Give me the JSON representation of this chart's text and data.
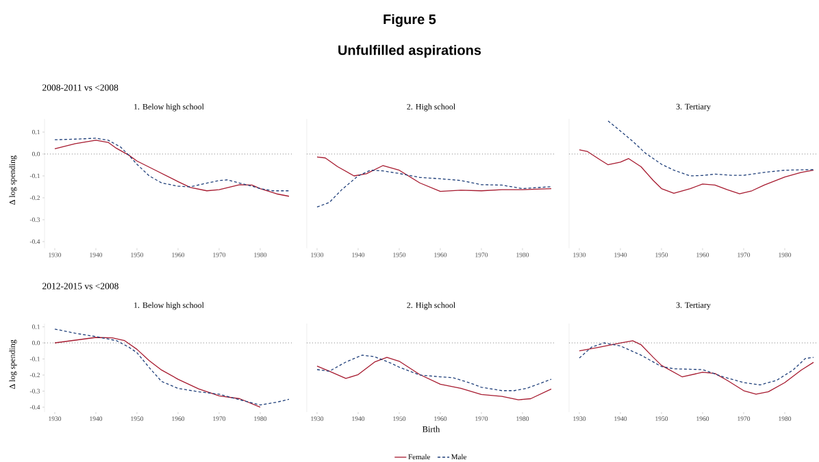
{
  "chart_data": [
    {
      "type": "line",
      "title": "1. Below high school",
      "subtitle": "2008-2011 vs <2008",
      "ylabel": "Δ log spending",
      "annotations": [
        "Figure 5",
        "Unfulfilled aspirations"
      ],
      "xlim": [
        1927.5,
        1988
      ],
      "xticks": [
        1930,
        1940,
        1950,
        1960,
        1970,
        1980
      ],
      "ylim": [
        -0.43,
        0.16
      ],
      "yticks": [
        -0.4,
        -0.3,
        -0.2,
        -0.1,
        {
          "value": 0,
          "label": "0.0"
        },
        0.1
      ],
      "ref_lines": [
        {
          "axis": "y",
          "value": 0,
          "line_style": "dotted",
          "color": "#333333"
        }
      ],
      "series": [
        {
          "color": "#a6192e",
          "line_style": "solid",
          "x": [
            1930,
            1935,
            1940,
            1943,
            1945,
            1948,
            1950,
            1955,
            1960,
            1963,
            1967,
            1970,
            1975,
            1978,
            1980,
            1984,
            1987
          ],
          "values": [
            0.024,
            0.047,
            0.063,
            0.053,
            0.026,
            -0.005,
            -0.032,
            -0.079,
            -0.126,
            -0.153,
            -0.168,
            -0.163,
            -0.14,
            -0.142,
            -0.158,
            -0.182,
            -0.193
          ]
        },
        {
          "color": "#1f3f7a",
          "line_style": "dashed",
          "x": [
            1930,
            1935,
            1940,
            1943,
            1946,
            1948,
            1950,
            1953,
            1956,
            1960,
            1963,
            1966,
            1970,
            1972,
            1975,
            1978,
            1980,
            1983,
            1987
          ],
          "values": [
            0.065,
            0.068,
            0.072,
            0.063,
            0.032,
            -0.005,
            -0.047,
            -0.1,
            -0.132,
            -0.147,
            -0.15,
            -0.137,
            -0.121,
            -0.118,
            -0.133,
            -0.147,
            -0.158,
            -0.168,
            -0.168
          ]
        }
      ]
    },
    {
      "type": "line",
      "title": "2. High school",
      "tick_labels": "x",
      "xlim": [
        1927.5,
        1988
      ],
      "xticks": [
        1930,
        1940,
        1950,
        1960,
        1970,
        1980
      ],
      "ylim": [
        -0.43,
        0.16
      ],
      "ref_lines": [
        {
          "axis": "y",
          "value": 0,
          "line_style": "dotted",
          "color": "#333333"
        }
      ],
      "series": [
        {
          "color": "#a6192e",
          "line_style": "solid",
          "x": [
            1930,
            1932,
            1935,
            1939,
            1942,
            1946,
            1950,
            1955,
            1960,
            1965,
            1970,
            1975,
            1980,
            1987
          ],
          "values": [
            -0.014,
            -0.018,
            -0.058,
            -0.1,
            -0.09,
            -0.053,
            -0.074,
            -0.132,
            -0.171,
            -0.165,
            -0.168,
            -0.163,
            -0.163,
            -0.158
          ]
        },
        {
          "color": "#1f3f7a",
          "line_style": "dashed",
          "x": [
            1930,
            1933,
            1936,
            1940,
            1943,
            1946,
            1950,
            1955,
            1960,
            1965,
            1970,
            1975,
            1980,
            1987
          ],
          "values": [
            -0.242,
            -0.221,
            -0.163,
            -0.1,
            -0.074,
            -0.077,
            -0.089,
            -0.107,
            -0.113,
            -0.121,
            -0.14,
            -0.142,
            -0.158,
            -0.149
          ]
        }
      ]
    },
    {
      "type": "line",
      "title": "3. Tertiary",
      "tick_labels": "x",
      "xlim": [
        1927.5,
        1988
      ],
      "xticks": [
        1930,
        1940,
        1950,
        1960,
        1970,
        1980
      ],
      "ylim": [
        -0.43,
        0.16
      ],
      "ref_lines": [
        {
          "axis": "y",
          "value": 0,
          "line_style": "dotted",
          "color": "#333333"
        }
      ],
      "series": [
        {
          "color": "#a6192e",
          "line_style": "solid",
          "x": [
            1930,
            1932,
            1935,
            1937,
            1940,
            1942,
            1945,
            1948,
            1950,
            1953,
            1957,
            1960,
            1963,
            1966,
            1969,
            1972,
            1975,
            1980,
            1984,
            1987
          ],
          "values": [
            0.019,
            0.011,
            -0.026,
            -0.049,
            -0.037,
            -0.021,
            -0.058,
            -0.121,
            -0.158,
            -0.179,
            -0.158,
            -0.137,
            -0.142,
            -0.163,
            -0.182,
            -0.168,
            -0.142,
            -0.105,
            -0.084,
            -0.074
          ]
        },
        {
          "color": "#1f3f7a",
          "line_style": "dashed",
          "x": [
            1937,
            1940,
            1943,
            1946,
            1950,
            1953,
            1957,
            1960,
            1963,
            1967,
            1970,
            1975,
            1980,
            1987
          ],
          "values": [
            0.151,
            0.105,
            0.058,
            0.005,
            -0.047,
            -0.074,
            -0.1,
            -0.098,
            -0.092,
            -0.097,
            -0.097,
            -0.084,
            -0.074,
            -0.071
          ]
        }
      ]
    },
    {
      "type": "line",
      "title": "1. Below high school",
      "subtitle": "2012-2015 vs <2008",
      "ylabel": "Δ log spending",
      "xlim": [
        1927.5,
        1988
      ],
      "xticks": [
        1930,
        1940,
        1950,
        1960,
        1970,
        1980
      ],
      "ylim": [
        -0.43,
        0.12
      ],
      "yticks": [
        -0.4,
        -0.3,
        -0.2,
        -0.1,
        {
          "value": 0,
          "label": "0.0"
        },
        0.1
      ],
      "ref_lines": [
        {
          "axis": "y",
          "value": 0,
          "line_style": "dotted",
          "color": "#333333"
        }
      ],
      "series": [
        {
          "color": "#a6192e",
          "line_style": "solid",
          "x": [
            1930,
            1935,
            1940,
            1944,
            1947,
            1950,
            1953,
            1956,
            1960,
            1965,
            1970,
            1975,
            1980
          ],
          "values": [
            0.0,
            0.017,
            0.034,
            0.031,
            0.014,
            -0.04,
            -0.111,
            -0.169,
            -0.226,
            -0.286,
            -0.329,
            -0.347,
            -0.4
          ]
        },
        {
          "color": "#1f3f7a",
          "line_style": "dashed",
          "x": [
            1930,
            1935,
            1940,
            1945,
            1948,
            1950,
            1953,
            1956,
            1960,
            1965,
            1970,
            1975,
            1980,
            1984,
            1987
          ],
          "values": [
            0.086,
            0.06,
            0.039,
            0.014,
            -0.026,
            -0.061,
            -0.154,
            -0.24,
            -0.283,
            -0.304,
            -0.319,
            -0.354,
            -0.386,
            -0.369,
            -0.351
          ]
        }
      ]
    },
    {
      "type": "line",
      "title": "2. High school",
      "xlabel": "Birth",
      "tick_labels": "x",
      "legend": "bottom",
      "xlim": [
        1927.5,
        1988
      ],
      "xticks": [
        1930,
        1940,
        1950,
        1960,
        1970,
        1980
      ],
      "ylim": [
        -0.43,
        0.12
      ],
      "ref_lines": [
        {
          "axis": "y",
          "value": 0,
          "line_style": "dotted",
          "color": "#333333"
        }
      ],
      "series": [
        {
          "name": "Female",
          "color": "#a6192e",
          "line_style": "solid",
          "x": [
            1930,
            1933,
            1937,
            1940,
            1944,
            1947,
            1950,
            1955,
            1960,
            1965,
            1970,
            1975,
            1979,
            1982,
            1987
          ],
          "values": [
            -0.144,
            -0.176,
            -0.221,
            -0.197,
            -0.119,
            -0.09,
            -0.114,
            -0.197,
            -0.257,
            -0.283,
            -0.321,
            -0.333,
            -0.354,
            -0.347,
            -0.287
          ]
        },
        {
          "name": "Male",
          "color": "#1f3f7a",
          "line_style": "dashed",
          "x": [
            1930,
            1933,
            1937,
            1941,
            1944,
            1948,
            1950,
            1955,
            1960,
            1963,
            1967,
            1970,
            1975,
            1978,
            1981,
            1987
          ],
          "values": [
            -0.166,
            -0.176,
            -0.119,
            -0.076,
            -0.086,
            -0.126,
            -0.151,
            -0.2,
            -0.211,
            -0.216,
            -0.247,
            -0.276,
            -0.297,
            -0.297,
            -0.283,
            -0.226
          ]
        }
      ]
    },
    {
      "type": "line",
      "title": "3. Tertiary",
      "tick_labels": "x",
      "xlim": [
        1927.5,
        1988
      ],
      "xticks": [
        1930,
        1940,
        1950,
        1960,
        1970,
        1980
      ],
      "ylim": [
        -0.43,
        0.12
      ],
      "ref_lines": [
        {
          "axis": "y",
          "value": 0,
          "line_style": "dotted",
          "color": "#333333"
        }
      ],
      "series": [
        {
          "color": "#a6192e",
          "line_style": "solid",
          "x": [
            1930,
            1935,
            1940,
            1943,
            1945,
            1948,
            1950,
            1955,
            1960,
            1963,
            1966,
            1970,
            1973,
            1976,
            1980,
            1984,
            1987
          ],
          "values": [
            -0.05,
            -0.026,
            -0.001,
            0.013,
            -0.011,
            -0.09,
            -0.14,
            -0.211,
            -0.183,
            -0.19,
            -0.233,
            -0.297,
            -0.319,
            -0.304,
            -0.247,
            -0.169,
            -0.121
          ]
        },
        {
          "color": "#1f3f7a",
          "line_style": "dashed",
          "x": [
            1930,
            1933,
            1936,
            1940,
            1945,
            1950,
            1953,
            1960,
            1965,
            1970,
            1974,
            1978,
            1982,
            1985,
            1987
          ],
          "values": [
            -0.094,
            -0.026,
            0.0,
            -0.019,
            -0.076,
            -0.147,
            -0.161,
            -0.166,
            -0.211,
            -0.247,
            -0.261,
            -0.233,
            -0.169,
            -0.097,
            -0.09
          ]
        }
      ]
    }
  ]
}
